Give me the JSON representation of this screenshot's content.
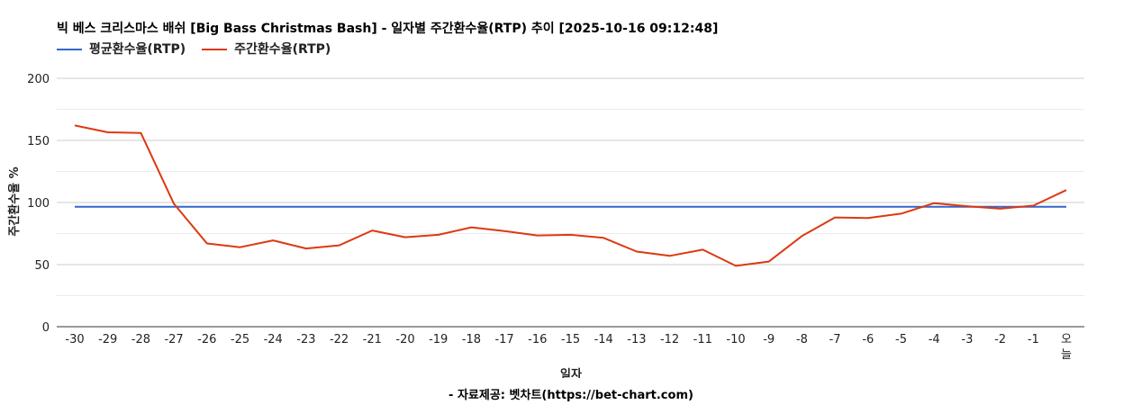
{
  "chart_data": {
    "type": "line",
    "title": "빅 베스 크리스마스 배쉬 [Big Bass Christmas Bash] - 일자별 주간환수율(RTP) 추이 [2025-10-16 09:12:48]",
    "xlabel": "일자",
    "ylabel": "주간환수율 %",
    "ylim": [
      0,
      200
    ],
    "yticks": [
      "0",
      "50",
      "100",
      "150",
      "200"
    ],
    "categories": [
      "-30",
      "-29",
      "-28",
      "-27",
      "-26",
      "-25",
      "-24",
      "-23",
      "-22",
      "-21",
      "-20",
      "-19",
      "-18",
      "-17",
      "-16",
      "-15",
      "-14",
      "-13",
      "-12",
      "-11",
      "-10",
      "-9",
      "-8",
      "-7",
      "-6",
      "-5",
      "-4",
      "-3",
      "-2",
      "-1",
      "오늘"
    ],
    "series": [
      {
        "name": "평균환수율(RTP)",
        "color": "#3366cc",
        "values": [
          96.5,
          96.5,
          96.5,
          96.5,
          96.5,
          96.5,
          96.5,
          96.5,
          96.5,
          96.5,
          96.5,
          96.5,
          96.5,
          96.5,
          96.5,
          96.5,
          96.5,
          96.5,
          96.5,
          96.5,
          96.5,
          96.5,
          96.5,
          96.5,
          96.5,
          96.5,
          96.5,
          96.5,
          96.5,
          96.5,
          96.5
        ]
      },
      {
        "name": "주간환수율(RTP)",
        "color": "#dc3912",
        "values": [
          162,
          156.5,
          156,
          99,
          67,
          64,
          69.5,
          63,
          65.5,
          77.5,
          72,
          74,
          80,
          77,
          73.5,
          74,
          71.5,
          60.5,
          57,
          62,
          49,
          52.5,
          73,
          88,
          87.5,
          91,
          99.5,
          97,
          95,
          97.5,
          110
        ]
      }
    ],
    "legend_position": "top-left",
    "grid": true
  },
  "footer": "- 자료제공: 벳차트(https://bet-chart.com)"
}
